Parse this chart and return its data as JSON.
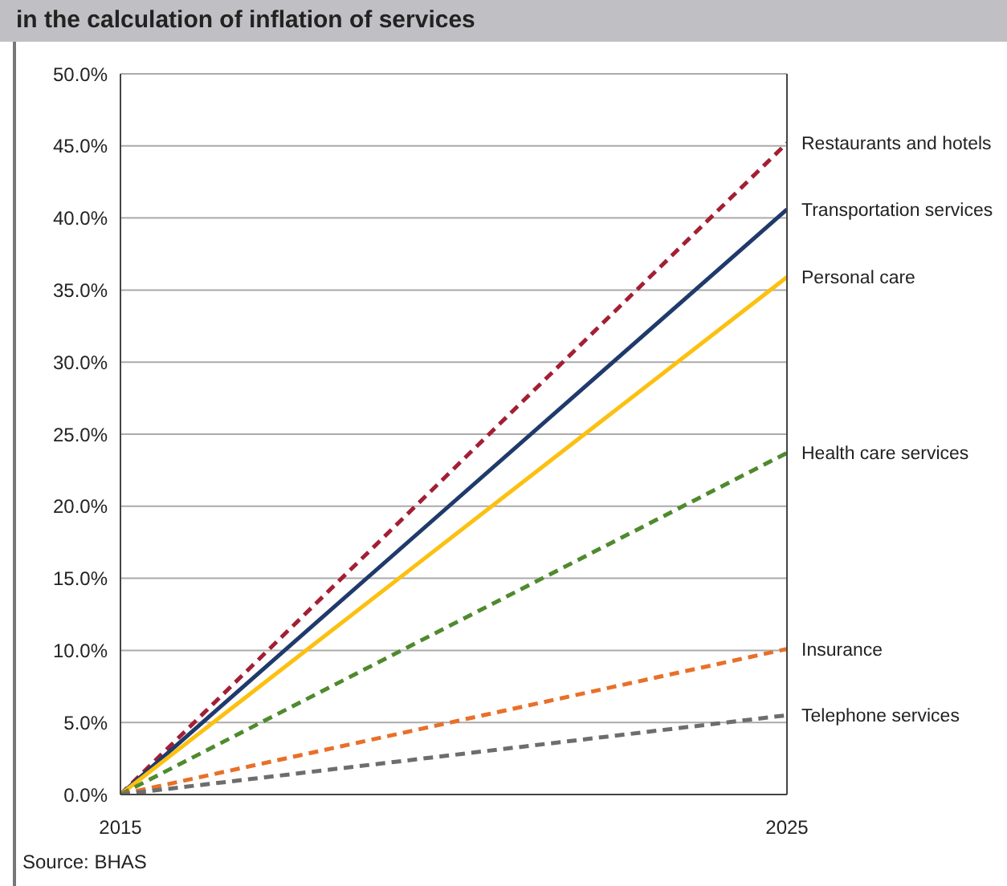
{
  "chart_data": {
    "type": "line",
    "title": "in the calculation of inflation of services",
    "x": [
      2015,
      2025
    ],
    "series": [
      {
        "name": "Restaurants and hotels",
        "color": "#a31f34",
        "values": [
          0,
          45.2
        ],
        "line_style": "dashed"
      },
      {
        "name": "Transportation services",
        "color": "#1f3a6b",
        "values": [
          0,
          40.6
        ],
        "line_style": "solid"
      },
      {
        "name": "Personal care",
        "color": "#fcc010",
        "values": [
          0,
          35.9
        ],
        "line_style": "solid"
      },
      {
        "name": "Health care services",
        "color": "#4f8a2e",
        "values": [
          0,
          23.7
        ],
        "line_style": "dashed"
      },
      {
        "name": "Insurance",
        "color": "#e8702a",
        "values": [
          0,
          10.1
        ],
        "line_style": "dashed"
      },
      {
        "name": "Telephone services",
        "color": "#6d6d6d",
        "values": [
          0,
          5.5
        ],
        "line_style": "dashed"
      }
    ],
    "xlim": [
      2015,
      2025
    ],
    "xticks": [
      2015,
      2025
    ],
    "ylim": [
      0,
      50
    ],
    "yticks": [
      {
        "value": 0,
        "label": "0.0%"
      },
      {
        "value": 5,
        "label": "5.0%"
      },
      {
        "value": 10,
        "label": "10.0%"
      },
      {
        "value": 15,
        "label": "15.0%"
      },
      {
        "value": 20,
        "label": "20.0%"
      },
      {
        "value": 25,
        "label": "25.0%"
      },
      {
        "value": 30,
        "label": "30.0%"
      },
      {
        "value": 35,
        "label": "35.0%"
      },
      {
        "value": 40,
        "label": "40.0%"
      },
      {
        "value": 45,
        "label": "45.0%"
      },
      {
        "value": 50,
        "label": "50.0%"
      }
    ],
    "grid": "y",
    "marker": "none",
    "annotations": [
      "Source: BHAS"
    ]
  }
}
